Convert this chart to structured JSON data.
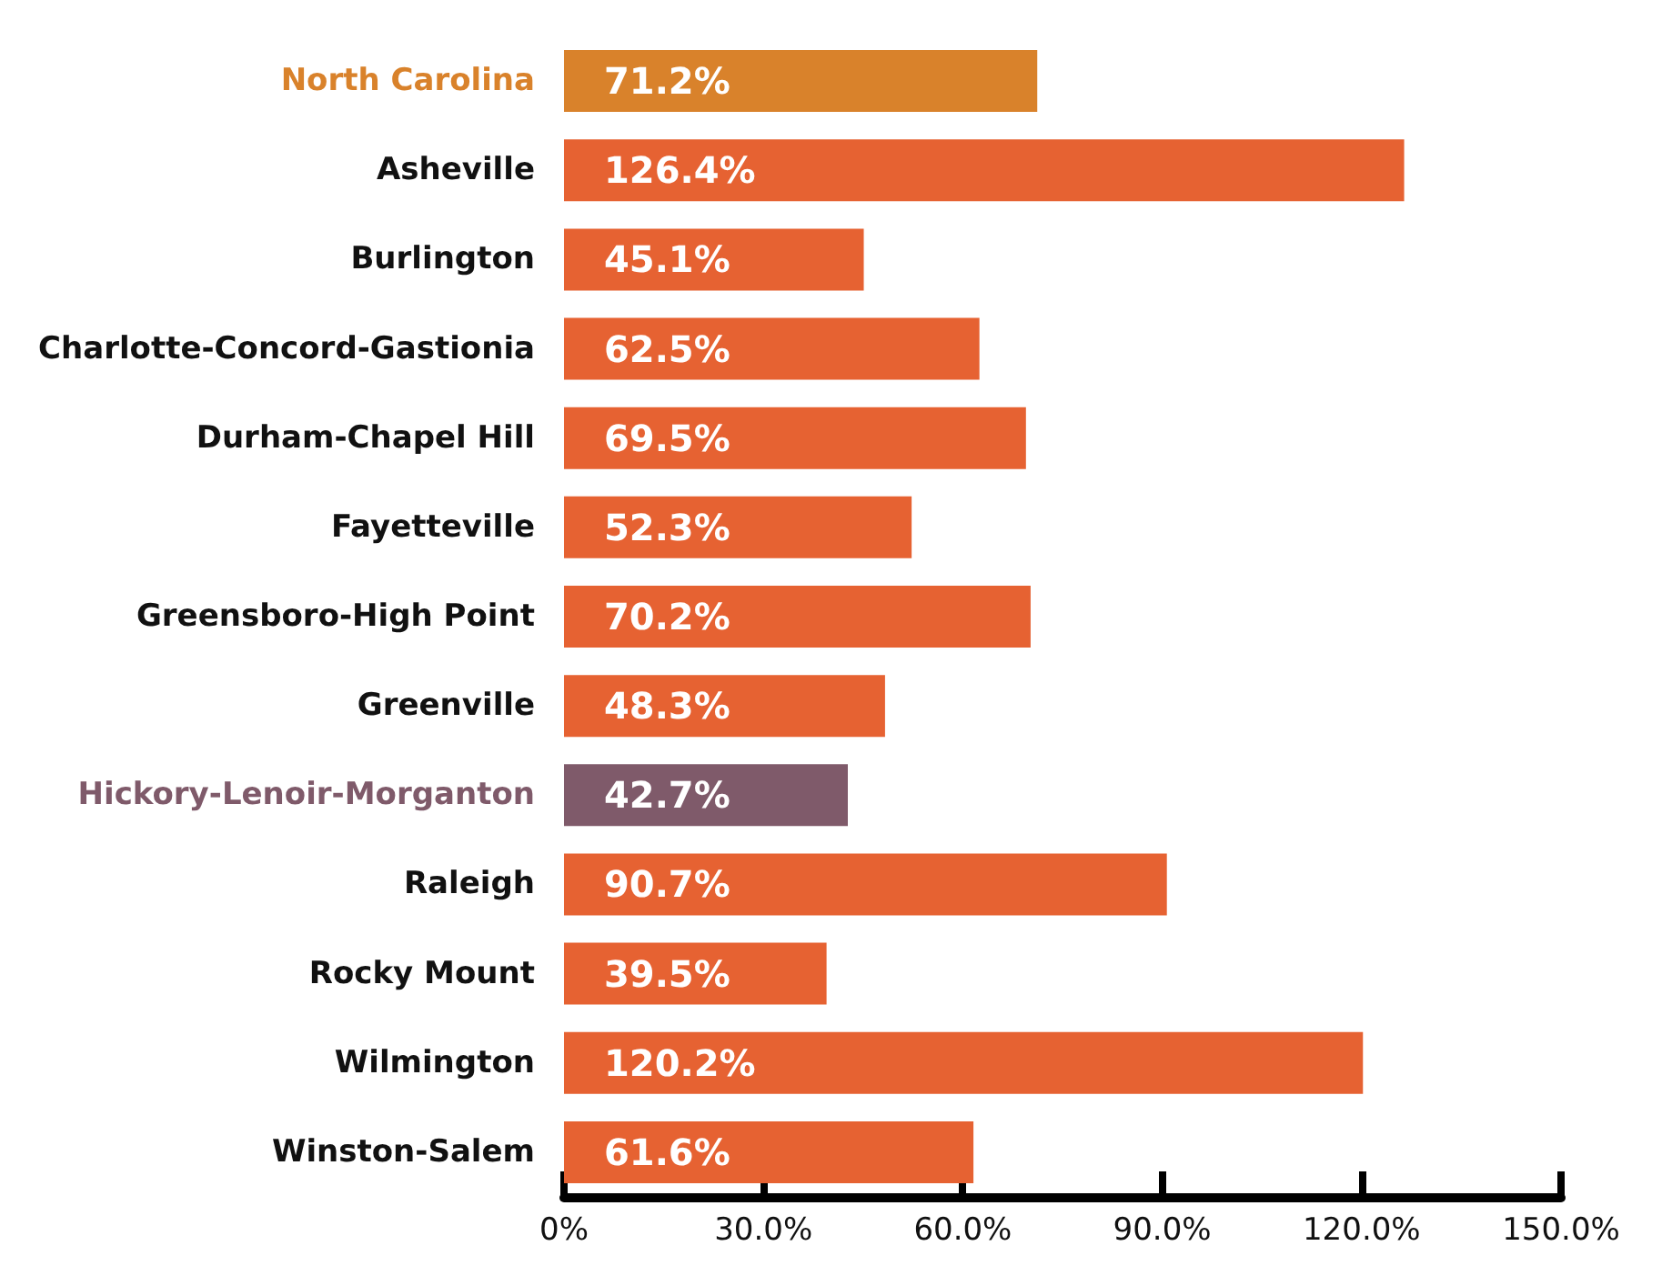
{
  "chart_data": {
    "type": "bar",
    "orientation": "horizontal",
    "categories": [
      "North Carolina",
      "Asheville",
      "Burlington",
      "Charlotte-Concord-Gastionia",
      "Durham-Chapel Hill",
      "Fayetteville",
      "Greensboro-High Point",
      "Greenville",
      "Hickory-Lenoir-Morganton",
      "Raleigh",
      "Rocky Mount",
      "Wilmington",
      "Winston-Salem"
    ],
    "values": [
      71.2,
      126.4,
      45.1,
      62.5,
      69.5,
      52.3,
      70.2,
      48.3,
      42.7,
      90.7,
      39.5,
      120.2,
      61.6
    ],
    "colors": [
      "#d9822b",
      "#e66232",
      "#e66232",
      "#e66232",
      "#e66232",
      "#e66232",
      "#e66232",
      "#e66232",
      "#7f5a6a",
      "#e66232",
      "#e66232",
      "#e66232",
      "#e66232"
    ],
    "value_labels": [
      "71.2%",
      "126.4%",
      "45.1%",
      "62.5%",
      "69.5%",
      "52.3%",
      "70.2%",
      "48.3%",
      "42.7%",
      "90.7%",
      "39.5%",
      "120.2%",
      "61.6%"
    ],
    "xlim": [
      0,
      150
    ],
    "xticks": [
      {
        "value": 0,
        "label": "0%"
      },
      {
        "value": 30,
        "label": "30.0%"
      },
      {
        "value": 60,
        "label": "60.0%"
      },
      {
        "value": 90,
        "label": "90.0%"
      },
      {
        "value": 120,
        "label": "120.0%"
      },
      {
        "value": 150,
        "label": "150.0%"
      }
    ],
    "grid": false
  }
}
